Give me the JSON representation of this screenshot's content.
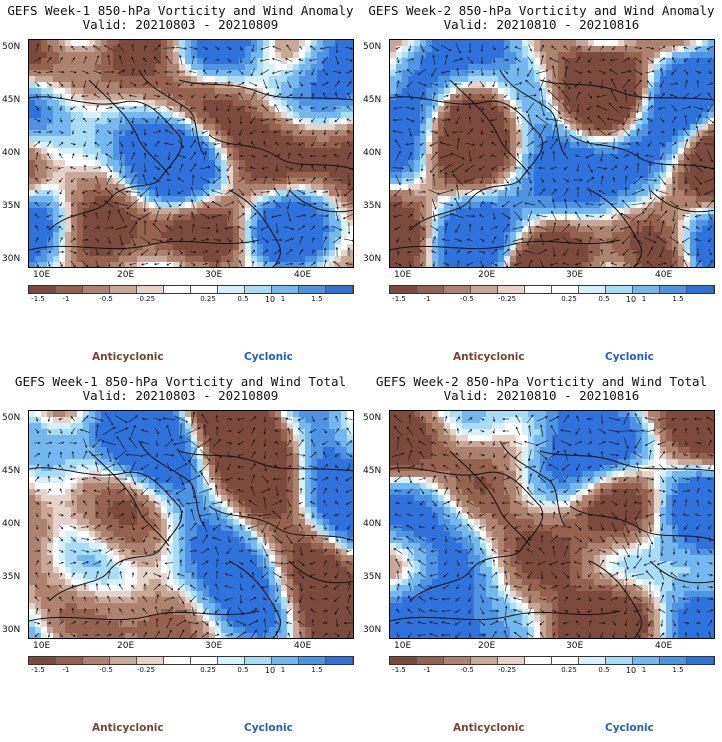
{
  "panels": [
    {
      "title": "GEFS Week-1 850-hPa Vorticity and Wind Anomaly",
      "valid": "Valid: 20210803 - 20210809",
      "seed": 11
    },
    {
      "title": "GEFS Week-2 850-hPa Vorticity and Wind Anomaly",
      "valid": "Valid: 20210810 - 20210816",
      "seed": 23
    },
    {
      "title": "GEFS Week-1 850-hPa Vorticity and Wind Total",
      "valid": "Valid: 20210803 - 20210809",
      "seed": 37
    },
    {
      "title": "GEFS Week-2 850-hPa Vorticity and Wind Total",
      "valid": "Valid: 20210810 - 20210816",
      "seed": 53
    }
  ],
  "lat_labels": [
    "50N",
    "45N",
    "40N",
    "35N",
    "30N"
  ],
  "lon_labels": [
    "10E",
    "20E",
    "30E",
    "40E"
  ],
  "colorbar": {
    "labels": [
      "-1.5",
      "-1",
      "-0.5",
      "-0.25",
      "0.25",
      "0.5",
      "1",
      "1.5"
    ],
    "scale_note": "10",
    "colors": [
      "#7b4a3c",
      "#94624f",
      "#ad8370",
      "#c9a898",
      "#e6d3c9",
      "#ffffff",
      "#ffffff",
      "#d7f1fb",
      "#a9dcf5",
      "#74b8ef",
      "#4f94e3",
      "#2f72db"
    ]
  },
  "legend": {
    "anticyclonic": "Anticyclonic",
    "cyclonic": "Cyclonic"
  }
}
